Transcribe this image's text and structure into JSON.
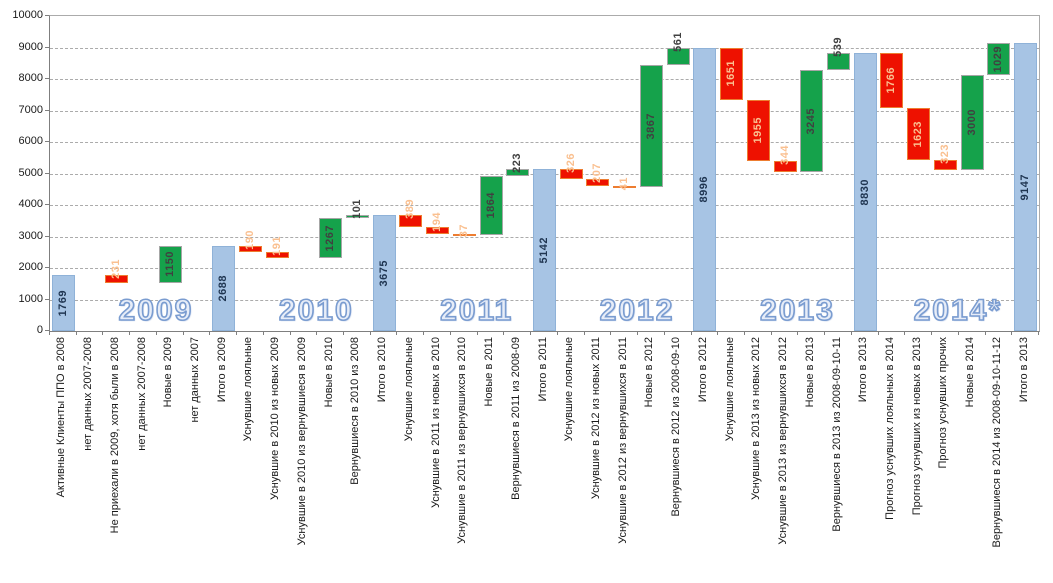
{
  "chart_data": {
    "type": "bar",
    "subtype": "waterfall",
    "title": "",
    "xlabel": "",
    "ylabel": "",
    "ylim": [
      0,
      10000
    ],
    "ytick_step": 1000,
    "grid": "horizontal-dashed",
    "legend": "none",
    "bars": [
      {
        "label": "Активные Клиенты ППО в 2008",
        "kind": "total",
        "value": 1769
      },
      {
        "label": "нет данных 2007-2008",
        "kind": "empty",
        "value": null
      },
      {
        "label": "Не приехали в 2009, хотя были в 2008",
        "kind": "decrease",
        "value": 231
      },
      {
        "label": "нет данных 2007-2008",
        "kind": "empty",
        "value": null
      },
      {
        "label": "Новые в 2009",
        "kind": "increase",
        "value": 1150
      },
      {
        "label": "нет данных 2007",
        "kind": "empty",
        "value": null
      },
      {
        "label": "Итого в 2009",
        "kind": "total",
        "value": 2688
      },
      {
        "label": "Уснувшие лояльные",
        "kind": "decrease",
        "value": 190
      },
      {
        "label": "Уснувшие в 2010 из новых 2009",
        "kind": "decrease",
        "value": 191
      },
      {
        "label": "Уснувшие в 2010 из вернувшиеся в 2009",
        "kind": "empty",
        "value": null
      },
      {
        "label": "Новые в 2010",
        "kind": "increase",
        "value": 1267
      },
      {
        "label": "Вернувшиеся в 2010 из 2008",
        "kind": "increase",
        "value": 101
      },
      {
        "label": "Итого в 2010",
        "kind": "total",
        "value": 3675
      },
      {
        "label": "Уснувшие лояльные",
        "kind": "decrease",
        "value": 389
      },
      {
        "label": "Уснувшие в 2011 из новых в 2010",
        "kind": "decrease",
        "value": 194
      },
      {
        "label": "Уснувшие в 2011 из вернувшихся в 2010",
        "kind": "decrease",
        "value": 37
      },
      {
        "label": "Новые в 2011",
        "kind": "increase",
        "value": 1864
      },
      {
        "label": "Вернувшиеся в 2011 из 2008-09",
        "kind": "increase",
        "value": 223
      },
      {
        "label": "Итого в 2011",
        "kind": "total",
        "value": 5142
      },
      {
        "label": "Уснувшие лояльные",
        "kind": "decrease",
        "value": 326
      },
      {
        "label": "Уснувшие в 2012 из новых 2011",
        "kind": "decrease",
        "value": 207
      },
      {
        "label": "Уснувшие в 2012 из вернувшихся в 2011",
        "kind": "decrease",
        "value": 41
      },
      {
        "label": "Новые в 2012",
        "kind": "increase",
        "value": 3867
      },
      {
        "label": "Вернувшиеся в 2012 из 2008-09-10",
        "kind": "increase",
        "value": 561
      },
      {
        "label": "Итого в 2012",
        "kind": "total",
        "value": 8996
      },
      {
        "label": "Уснувшие лояльные",
        "kind": "decrease",
        "value": 1651
      },
      {
        "label": "Уснувшие в 2013 из новых 2012",
        "kind": "decrease",
        "value": 1955
      },
      {
        "label": "Уснувшие в 2013 из вернувшихся в 2012",
        "kind": "decrease",
        "value": 344
      },
      {
        "label": "Новые в 2013",
        "kind": "increase",
        "value": 3245
      },
      {
        "label": "Вернувшиеся в 2013 из 2008-09-10-11",
        "kind": "increase",
        "value": 539
      },
      {
        "label": "Итого в 2013",
        "kind": "total",
        "value": 8830
      },
      {
        "label": "Прогноз уснувших лояльных в 2014",
        "kind": "decrease",
        "value": 1766
      },
      {
        "label": "Прогноз уснувших из новых в 2013",
        "kind": "decrease",
        "value": 1623
      },
      {
        "label": "Прогноз уснувших прочих",
        "kind": "decrease",
        "value": 323
      },
      {
        "label": "Новые в 2014",
        "kind": "increase",
        "value": 3000
      },
      {
        "label": "Вернувшиеся в 2014 из 2008-09-10-11-12",
        "kind": "increase",
        "value": 1029
      },
      {
        "label": "Итого в 2013",
        "kind": "total",
        "value": 9147
      }
    ],
    "year_labels": [
      {
        "text": "2009",
        "slot_center": 4
      },
      {
        "text": "2010",
        "slot_center": 10
      },
      {
        "text": "2011",
        "slot_center": 16
      },
      {
        "text": "2012",
        "slot_center": 22
      },
      {
        "text": "2013",
        "slot_center": 28
      },
      {
        "text": "2014*",
        "slot_center": 34
      }
    ],
    "colors": {
      "total_bar": "#A7C4E4",
      "total_border": "#8FB2D8",
      "total_label": "#1F3551",
      "decrease_bar": "#EE1100",
      "decrease_border": "#ED7D31",
      "decrease_label": "#FAC090",
      "increase_bar": "#15A24B",
      "increase_border": "#A6A6A6",
      "increase_label": "#404040",
      "grid": "#ABABAB",
      "axis": "#7F7F7F",
      "year_label_fill": "#E7EDF8",
      "year_label_stroke": "#7A9CD0"
    }
  }
}
